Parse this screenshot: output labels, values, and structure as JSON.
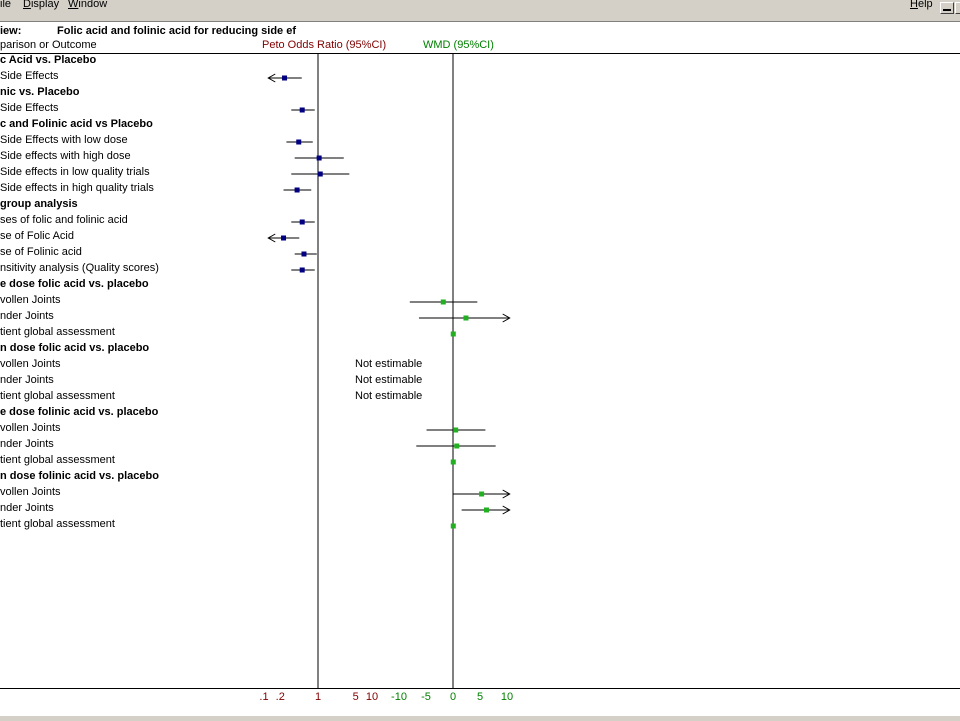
{
  "menubar": {
    "items": [
      "ile",
      "Display",
      "Window"
    ],
    "help": "Help"
  },
  "header": {
    "review_label": "iew:",
    "review_title": "Folic acid and folinic acid for reducing side ef",
    "column_outcome": "parison or Outcome",
    "column_or": "Peto Odds Ratio (95%CI)",
    "column_wmd": "WMD (95%CI)"
  },
  "colors": {
    "or_series": "#000080",
    "wmd_series": "#20b020",
    "or_text": "#800000",
    "wmd_text": "#008000"
  },
  "rows": [
    {
      "label": "c Acid vs. Placebo",
      "group": true
    },
    {
      "label": "Side Effects",
      "type": "or",
      "est": 0.24,
      "lo": 0.12,
      "hi": 0.5,
      "arrow_left": true
    },
    {
      "label": "nic vs. Placebo",
      "group": true
    },
    {
      "label": "Side Effects",
      "type": "or",
      "est": 0.51,
      "lo": 0.32,
      "hi": 0.87
    },
    {
      "label": "c and Folinic acid vs Placebo",
      "group": true
    },
    {
      "label": "Side Effects with low dose",
      "type": "or",
      "est": 0.44,
      "lo": 0.26,
      "hi": 0.8
    },
    {
      "label": "Side effects with high dose",
      "type": "or",
      "est": 1.05,
      "lo": 0.37,
      "hi": 3.0
    },
    {
      "label": "Side effects in low quality trials",
      "type": "or",
      "est": 1.1,
      "lo": 0.32,
      "hi": 3.8
    },
    {
      "label": "Side effects in high quality trials",
      "type": "or",
      "est": 0.41,
      "lo": 0.23,
      "hi": 0.75
    },
    {
      "label": "group analysis",
      "group": true
    },
    {
      "label": "ses of folic and folinic acid",
      "type": "or",
      "est": 0.51,
      "lo": 0.32,
      "hi": 0.87
    },
    {
      "label": "se of Folic Acid",
      "type": "or",
      "est": 0.23,
      "lo": 0.12,
      "hi": 0.45,
      "arrow_left": true
    },
    {
      "label": "se of Folinic acid",
      "type": "or",
      "est": 0.55,
      "lo": 0.37,
      "hi": 0.95
    },
    {
      "label": "nsitivity analysis (Quality scores)",
      "type": "or",
      "est": 0.51,
      "lo": 0.32,
      "hi": 0.87
    },
    {
      "label": "e dose folic acid vs. placebo",
      "group": true
    },
    {
      "label": "vollen Joints",
      "type": "wmd",
      "est": -1.8,
      "lo": -8.0,
      "hi": 4.5
    },
    {
      "label": "nder Joints",
      "type": "wmd",
      "est": 2.4,
      "lo": -6.3,
      "hi": 10.5,
      "arrow_right": true
    },
    {
      "label": "tient global assessment",
      "type": "wmd",
      "est": 0.05,
      "lo": -0.25,
      "hi": 0.35
    },
    {
      "label": "n dose folic acid vs. placebo",
      "group": true
    },
    {
      "label": "vollen Joints",
      "type": "ne",
      "note": "Not estimable"
    },
    {
      "label": "nder Joints",
      "type": "ne",
      "note": "Not estimable"
    },
    {
      "label": "tient global assessment",
      "type": "ne",
      "note": "Not estimable"
    },
    {
      "label": "e dose folinic  acid vs. placebo",
      "group": true
    },
    {
      "label": "vollen Joints",
      "type": "wmd",
      "est": 0.5,
      "lo": -4.9,
      "hi": 6.0
    },
    {
      "label": "nder Joints",
      "type": "wmd",
      "est": 0.7,
      "lo": -6.8,
      "hi": 7.9
    },
    {
      "label": "tient global assessment",
      "type": "wmd",
      "est": 0.05,
      "lo": -0.25,
      "hi": 0.35
    },
    {
      "label": "n dose folinic  acid vs. placebo",
      "group": true
    },
    {
      "label": "vollen Joints",
      "type": "wmd",
      "est": 5.3,
      "lo": 0.0,
      "hi": 10.5,
      "arrow_right": true
    },
    {
      "label": "nder Joints",
      "type": "wmd",
      "est": 6.2,
      "lo": 1.6,
      "hi": 10.5,
      "arrow_right": true
    },
    {
      "label": "tient global assessment",
      "type": "wmd",
      "est": 0.05,
      "lo": -0.35,
      "hi": 0.45
    }
  ],
  "axis": {
    "or_ticks": [
      ".1",
      ".2",
      "1",
      "5",
      "10"
    ],
    "wmd_ticks": [
      "-10",
      "-5",
      "0",
      "5",
      "10"
    ]
  }
}
